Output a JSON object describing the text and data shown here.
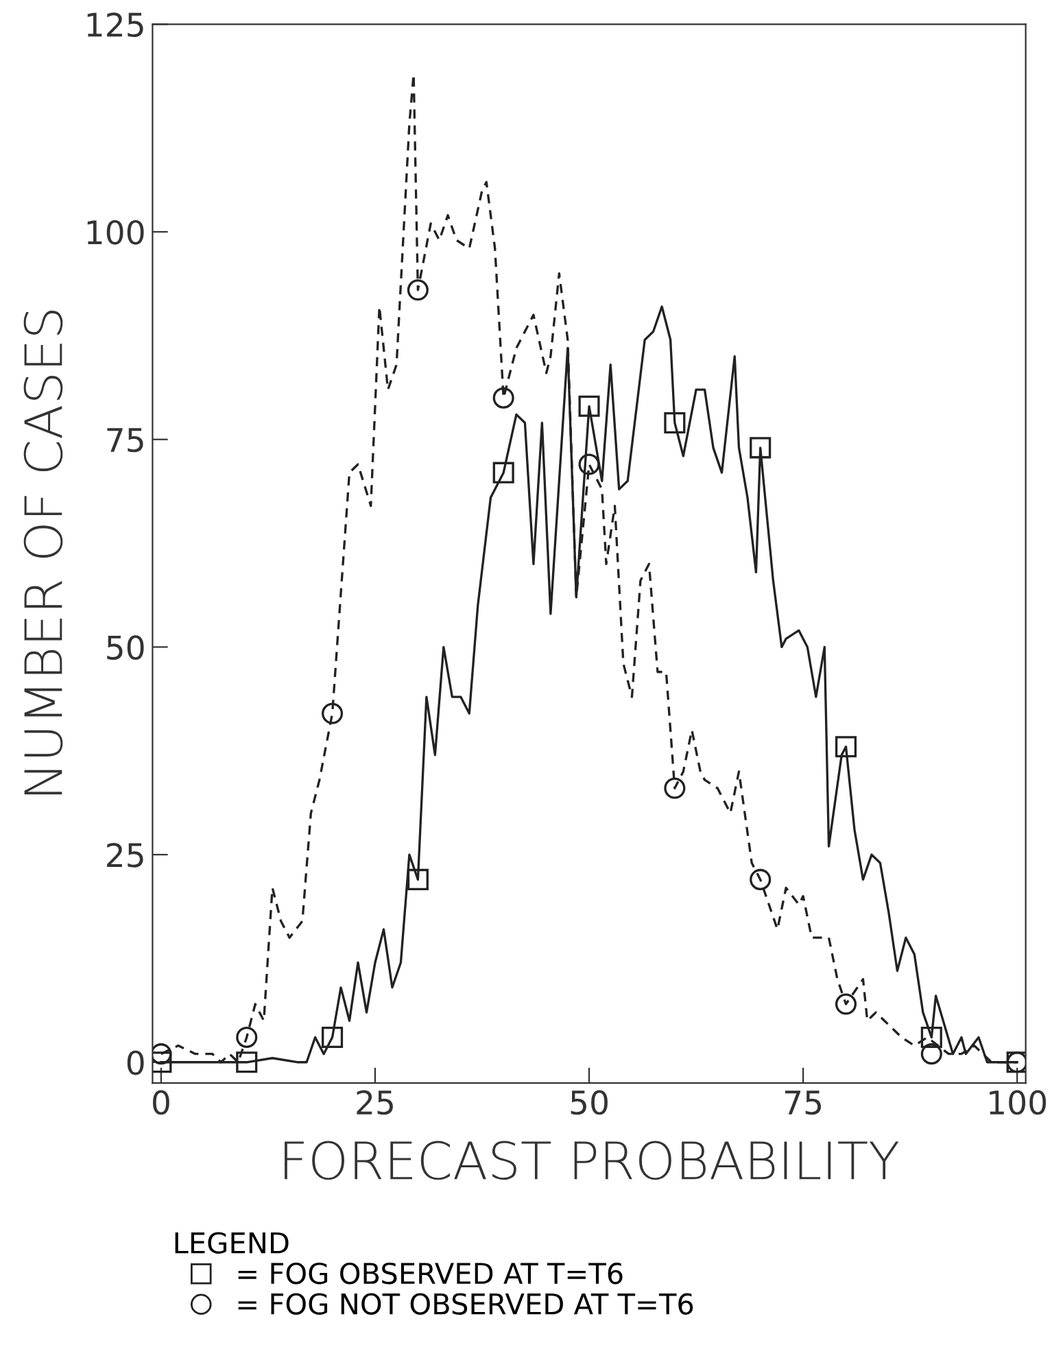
{
  "chart_data": {
    "type": "line",
    "xlabel": "FORECAST PROBABILITY",
    "ylabel": "NUMBER OF CASES",
    "legend_title": "LEGEND",
    "legend": "bottom",
    "grid": false,
    "xlim": [
      -1,
      101
    ],
    "ylim": [
      -2.5,
      125
    ],
    "xticks": [
      0,
      25,
      50,
      75,
      100
    ],
    "yticks": [
      0,
      25,
      50,
      75,
      100,
      125
    ],
    "series": [
      {
        "color": "#222222",
        "line_style": "solid",
        "marker": "none",
        "x": [
          0,
          10,
          13,
          16,
          17,
          18,
          19,
          20,
          21,
          22,
          23,
          24,
          25,
          26,
          27,
          28,
          29,
          30,
          31,
          32,
          33,
          34,
          35,
          36,
          37,
          38.5,
          40,
          41.5,
          42.5,
          43.5,
          44.5,
          45.5,
          47.5,
          48.5,
          50,
          51.5,
          52.5,
          53.5,
          54.5,
          56.5,
          57.5,
          58.5,
          59.5,
          60,
          61,
          62.5,
          63.5,
          64.5,
          65.5,
          67,
          67.5,
          68.5,
          69.5,
          70,
          71.5,
          72.5,
          73,
          74.5,
          75.5,
          76.5,
          77.5,
          78,
          79.5,
          80,
          81,
          82,
          83,
          84,
          85,
          86,
          87,
          88,
          89,
          90,
          90.5,
          92.5,
          93.5,
          94,
          95.5,
          96.5,
          100
        ],
        "values": [
          0,
          0,
          0.5,
          0,
          0,
          3,
          1,
          3,
          9,
          5,
          12,
          6,
          12,
          16,
          9,
          12,
          25,
          22,
          44,
          37,
          50,
          44,
          44,
          42,
          55,
          68,
          71,
          78,
          77,
          60,
          77,
          54,
          86,
          56,
          79,
          70,
          84,
          69,
          70,
          87,
          88,
          91,
          87,
          77,
          73,
          81,
          81,
          74,
          71,
          85,
          74,
          68,
          59,
          74,
          58,
          50,
          51,
          52,
          50,
          44,
          50,
          26,
          37,
          38,
          28,
          22,
          25,
          24,
          18,
          11,
          15,
          13,
          6,
          3,
          8,
          1,
          3,
          1,
          3,
          0,
          0
        ]
      },
      {
        "color": "#222222",
        "line_style": "dashed",
        "marker": "none",
        "x": [
          0,
          2,
          4,
          6,
          7,
          8,
          9,
          10,
          11,
          12,
          13,
          14,
          15,
          16.5,
          17.5,
          18.5,
          20,
          22,
          23,
          24.5,
          25.5,
          26.5,
          27.5,
          29,
          29.5,
          30,
          31.5,
          32.5,
          33.5,
          34.5,
          36,
          37.5,
          38,
          39,
          40,
          41.5,
          43.5,
          45,
          45.5,
          46.5,
          47.5,
          48.5,
          50,
          51.5,
          52,
          53,
          54,
          55,
          56,
          57,
          58,
          59,
          60,
          61,
          62,
          63,
          63.5,
          65,
          66.5,
          67.5,
          69,
          70,
          72,
          73,
          74.5,
          75,
          76,
          78,
          79,
          80,
          82,
          82.5,
          83.5,
          86.5,
          88,
          89.5,
          92,
          93.5,
          95,
          96,
          97,
          100
        ],
        "values": [
          1,
          2,
          1,
          1,
          0,
          1,
          0,
          3,
          7,
          5,
          21,
          17,
          15,
          17,
          30,
          34,
          42,
          71,
          72,
          67,
          91,
          81,
          84,
          113,
          119,
          93,
          101,
          99,
          102,
          99,
          98,
          105,
          106,
          98,
          80,
          86,
          90,
          83,
          85,
          95,
          87,
          56,
          72,
          69,
          60,
          67,
          48,
          44,
          58,
          60,
          47,
          47,
          33,
          35,
          40,
          35,
          34,
          33,
          30,
          35,
          24,
          22,
          16,
          21,
          19,
          20,
          15,
          15,
          10,
          7,
          10,
          5,
          6,
          3,
          2,
          3,
          1,
          1,
          2,
          1,
          0,
          0
        ]
      },
      {
        "type": "scatter",
        "name": "= FOG OBSERVED AT T=T6",
        "color": "#222222",
        "marker": "square",
        "x": [
          0,
          10,
          20,
          30,
          40,
          50,
          60,
          70,
          80,
          90,
          100
        ],
        "values": [
          0,
          0,
          3,
          22,
          71,
          79,
          77,
          74,
          38,
          3,
          0
        ]
      },
      {
        "type": "scatter",
        "name": "= FOG NOT OBSERVED AT T=T6",
        "color": "#222222",
        "marker": "circle",
        "x": [
          0,
          10,
          20,
          30,
          40,
          50,
          60,
          70,
          80,
          90,
          100
        ],
        "values": [
          1,
          3,
          42,
          93,
          80,
          72,
          33,
          22,
          7,
          1,
          0
        ]
      }
    ]
  }
}
